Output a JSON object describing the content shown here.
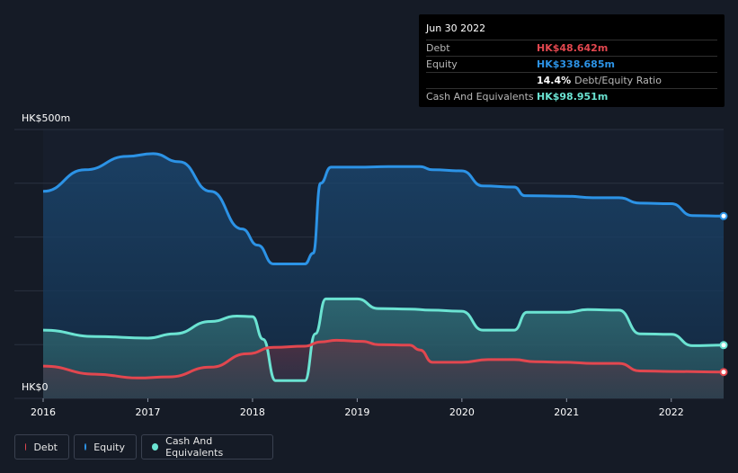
{
  "tooltip": {
    "date": "Jun 30 2022",
    "rows": [
      {
        "label": "Debt",
        "value": "HK$48.642m",
        "color": "#e2474f"
      },
      {
        "label": "Equity",
        "value": "HK$338.685m",
        "color": "#2c93e6"
      },
      {
        "label": "",
        "value": "14.4%",
        "suffix": "Debt/Equity Ratio",
        "color": "#ffffff"
      },
      {
        "label": "Cash And Equivalents",
        "value": "HK$98.951m",
        "color": "#6be3d2"
      }
    ]
  },
  "legend": [
    {
      "label": "Debt",
      "color": "#e2474f"
    },
    {
      "label": "Equity",
      "color": "#2c93e6"
    },
    {
      "label": "Cash And Equivalents",
      "color": "#6be3d2"
    }
  ],
  "chart_data": {
    "type": "area",
    "y_tick_labels": [
      "HK$500m",
      "HK$0"
    ],
    "x_tick_labels": [
      "2016",
      "2017",
      "2018",
      "2019",
      "2020",
      "2021",
      "2022"
    ],
    "ylim": [
      0,
      500
    ],
    "xlim": [
      2016.0,
      2022.5
    ],
    "grid": true,
    "legend_position": "bottom-left",
    "series": [
      {
        "name": "Debt",
        "color": "#e2474f",
        "points": [
          [
            2016.0,
            60
          ],
          [
            2016.5,
            45
          ],
          [
            2016.9,
            38
          ],
          [
            2017.2,
            40
          ],
          [
            2017.6,
            58
          ],
          [
            2017.95,
            83
          ],
          [
            2018.2,
            95
          ],
          [
            2018.5,
            97
          ],
          [
            2018.65,
            105
          ],
          [
            2018.8,
            108
          ],
          [
            2019.05,
            106
          ],
          [
            2019.2,
            100
          ],
          [
            2019.5,
            99
          ],
          [
            2019.6,
            90
          ],
          [
            2019.72,
            67
          ],
          [
            2020.0,
            67
          ],
          [
            2020.25,
            72
          ],
          [
            2020.5,
            72
          ],
          [
            2020.7,
            68
          ],
          [
            2021.0,
            67
          ],
          [
            2021.25,
            65
          ],
          [
            2021.5,
            65
          ],
          [
            2021.7,
            51
          ],
          [
            2022.0,
            50
          ],
          [
            2022.5,
            49
          ]
        ]
      },
      {
        "name": "Equity",
        "color": "#2c93e6",
        "points": [
          [
            2016.0,
            385
          ],
          [
            2016.4,
            425
          ],
          [
            2016.8,
            450
          ],
          [
            2017.05,
            455
          ],
          [
            2017.3,
            440
          ],
          [
            2017.6,
            385
          ],
          [
            2017.9,
            315
          ],
          [
            2018.05,
            285
          ],
          [
            2018.2,
            250
          ],
          [
            2018.5,
            250
          ],
          [
            2018.58,
            270
          ],
          [
            2018.65,
            400
          ],
          [
            2018.75,
            430
          ],
          [
            2019.0,
            430
          ],
          [
            2019.3,
            431
          ],
          [
            2019.6,
            431
          ],
          [
            2019.72,
            425
          ],
          [
            2020.0,
            423
          ],
          [
            2020.2,
            395
          ],
          [
            2020.5,
            393
          ],
          [
            2020.6,
            377
          ],
          [
            2021.0,
            376
          ],
          [
            2021.25,
            373
          ],
          [
            2021.5,
            373
          ],
          [
            2021.7,
            363
          ],
          [
            2022.0,
            362
          ],
          [
            2022.2,
            340
          ],
          [
            2022.5,
            339
          ]
        ]
      },
      {
        "name": "Cash And Equivalents",
        "color": "#6be3d2",
        "points": [
          [
            2016.0,
            127
          ],
          [
            2016.5,
            115
          ],
          [
            2017.0,
            112
          ],
          [
            2017.25,
            120
          ],
          [
            2017.6,
            143
          ],
          [
            2017.85,
            153
          ],
          [
            2018.0,
            152
          ],
          [
            2018.1,
            110
          ],
          [
            2018.22,
            33
          ],
          [
            2018.5,
            33
          ],
          [
            2018.6,
            120
          ],
          [
            2018.7,
            185
          ],
          [
            2019.0,
            185
          ],
          [
            2019.2,
            167
          ],
          [
            2019.5,
            166
          ],
          [
            2019.7,
            164
          ],
          [
            2020.0,
            162
          ],
          [
            2020.2,
            127
          ],
          [
            2020.5,
            127
          ],
          [
            2020.62,
            160
          ],
          [
            2021.0,
            160
          ],
          [
            2021.2,
            165
          ],
          [
            2021.5,
            164
          ],
          [
            2021.7,
            120
          ],
          [
            2022.0,
            119
          ],
          [
            2022.2,
            98
          ],
          [
            2022.5,
            99
          ]
        ]
      }
    ]
  }
}
